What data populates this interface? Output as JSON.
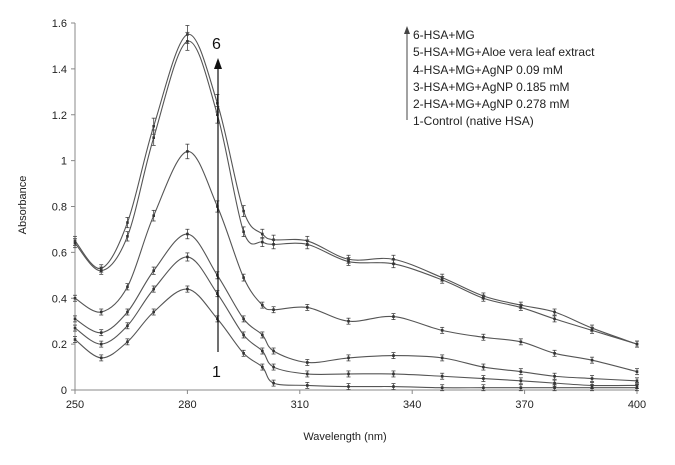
{
  "chart_data": {
    "type": "line",
    "title": "",
    "xlabel": "Wavelength (nm)",
    "ylabel": "Absorbance",
    "xlim": [
      250,
      400
    ],
    "ylim": [
      0,
      1.6
    ],
    "x_ticks": [
      250,
      280,
      310,
      340,
      370,
      400
    ],
    "y_ticks": [
      0,
      0.2,
      0.4,
      0.6,
      0.8,
      1,
      1.2,
      1.4,
      1.6
    ],
    "grid": false,
    "legend_position": "top-right",
    "legend_entries": [
      "6-HSA+MG",
      "5-HSA+MG+Aloe vera leaf extract",
      "4-HSA+MG+AgNP 0.09 mM",
      "3-HSA+MG+AgNP 0.185 mM",
      "2-HSA+MG+AgNP 0.278 mM",
      "1-Control (native HSA)"
    ],
    "annotations": {
      "arrow_top": "6",
      "arrow_bottom": "1"
    },
    "x": [
      250,
      257,
      264,
      271,
      280,
      288,
      295,
      300,
      303,
      312,
      323,
      335,
      348,
      359,
      369,
      378,
      388,
      400
    ],
    "series": [
      {
        "name": "6-HSA+MG",
        "values": [
          0.65,
          0.53,
          0.73,
          1.15,
          1.55,
          1.25,
          0.78,
          0.68,
          0.655,
          0.65,
          0.57,
          0.57,
          0.49,
          0.41,
          0.37,
          0.34,
          0.27,
          0.2
        ]
      },
      {
        "name": "5-HSA+MG+Aloe vera leaf extract",
        "values": [
          0.64,
          0.52,
          0.67,
          1.1,
          1.52,
          1.2,
          0.69,
          0.645,
          0.635,
          0.635,
          0.56,
          0.55,
          0.48,
          0.4,
          0.36,
          0.31,
          0.26,
          0.2
        ]
      },
      {
        "name": "4-HSA+MG+AgNP 0.09 mM",
        "values": [
          0.4,
          0.34,
          0.45,
          0.76,
          1.04,
          0.8,
          0.49,
          0.37,
          0.35,
          0.36,
          0.3,
          0.32,
          0.26,
          0.23,
          0.21,
          0.16,
          0.13,
          0.08
        ]
      },
      {
        "name": "3-HSA+MG+AgNP 0.185 mM",
        "values": [
          0.31,
          0.25,
          0.34,
          0.52,
          0.68,
          0.5,
          0.31,
          0.24,
          0.17,
          0.12,
          0.14,
          0.15,
          0.14,
          0.1,
          0.08,
          0.06,
          0.05,
          0.04
        ]
      },
      {
        "name": "2-HSA+MG+AgNP 0.278 mM",
        "values": [
          0.27,
          0.2,
          0.28,
          0.44,
          0.58,
          0.42,
          0.24,
          0.17,
          0.1,
          0.07,
          0.07,
          0.07,
          0.06,
          0.05,
          0.04,
          0.03,
          0.02,
          0.02
        ]
      },
      {
        "name": "1-Control (native HSA)",
        "values": [
          0.22,
          0.14,
          0.21,
          0.34,
          0.44,
          0.31,
          0.16,
          0.1,
          0.03,
          0.02,
          0.015,
          0.015,
          0.01,
          0.01,
          0.01,
          0.01,
          0.01,
          0.01
        ]
      }
    ]
  }
}
